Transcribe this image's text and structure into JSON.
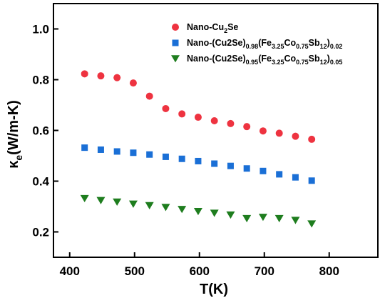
{
  "chart_data": {
    "type": "scatter",
    "xlabel": "T(K)",
    "ylabel": {
      "base": "κ",
      "sub": "e",
      "rest": "(W/m-K)"
    },
    "xlim": [
      375,
      875
    ],
    "ylim": [
      0.1,
      1.1
    ],
    "xticks": [
      400,
      500,
      600,
      700,
      800
    ],
    "yticks": [
      0.2,
      0.4,
      0.6,
      0.8,
      1.0
    ],
    "xtick_labels": [
      "400",
      "500",
      "600",
      "700",
      "800"
    ],
    "ytick_labels": [
      "0.2",
      "0.4",
      "0.6",
      "0.8",
      "1.0"
    ],
    "grid": false,
    "legend_position": "top-right",
    "series": [
      {
        "name": [
          [
            "Nano-Cu",
            "n"
          ],
          [
            "2",
            "s"
          ],
          [
            "Se",
            "n"
          ]
        ],
        "marker": "circle",
        "color": "#ee3340",
        "x": [
          423,
          448,
          473,
          498,
          523,
          548,
          573,
          598,
          623,
          648,
          673,
          698,
          723,
          748,
          773
        ],
        "y": [
          0.823,
          0.815,
          0.808,
          0.787,
          0.735,
          0.686,
          0.665,
          0.652,
          0.638,
          0.627,
          0.615,
          0.598,
          0.589,
          0.577,
          0.565
        ]
      },
      {
        "name": [
          [
            "Nano-(Cu2Se)",
            "n"
          ],
          [
            "0.98",
            "s"
          ],
          [
            "(Fe",
            "n"
          ],
          [
            "3.25",
            "s"
          ],
          [
            "Co",
            "n"
          ],
          [
            "0.75",
            "s"
          ],
          [
            "Sb",
            "n"
          ],
          [
            "12",
            "s"
          ],
          [
            ")",
            "n"
          ],
          [
            "0.02",
            "s"
          ]
        ],
        "marker": "square",
        "color": "#1a6fd6",
        "x": [
          423,
          448,
          473,
          498,
          523,
          548,
          573,
          598,
          623,
          648,
          673,
          698,
          723,
          748,
          773
        ],
        "y": [
          0.532,
          0.524,
          0.517,
          0.512,
          0.505,
          0.496,
          0.488,
          0.479,
          0.469,
          0.46,
          0.45,
          0.44,
          0.427,
          0.415,
          0.402
        ]
      },
      {
        "name": [
          [
            "Nano-(Cu2Se)",
            "n"
          ],
          [
            "0.95",
            "s"
          ],
          [
            "(Fe",
            "n"
          ],
          [
            "3.25",
            "s"
          ],
          [
            "Co",
            "n"
          ],
          [
            "0.75",
            "s"
          ],
          [
            "Sb",
            "n"
          ],
          [
            "12",
            "s"
          ],
          [
            ")",
            "n"
          ],
          [
            "0.05",
            "s"
          ]
        ],
        "marker": "triangle-down",
        "color": "#1e7d1e",
        "x": [
          423,
          448,
          473,
          498,
          523,
          548,
          573,
          598,
          623,
          648,
          673,
          698,
          723,
          748,
          773
        ],
        "y": [
          0.332,
          0.324,
          0.318,
          0.31,
          0.304,
          0.297,
          0.289,
          0.281,
          0.274,
          0.267,
          0.253,
          0.258,
          0.253,
          0.246,
          0.232
        ]
      }
    ]
  }
}
